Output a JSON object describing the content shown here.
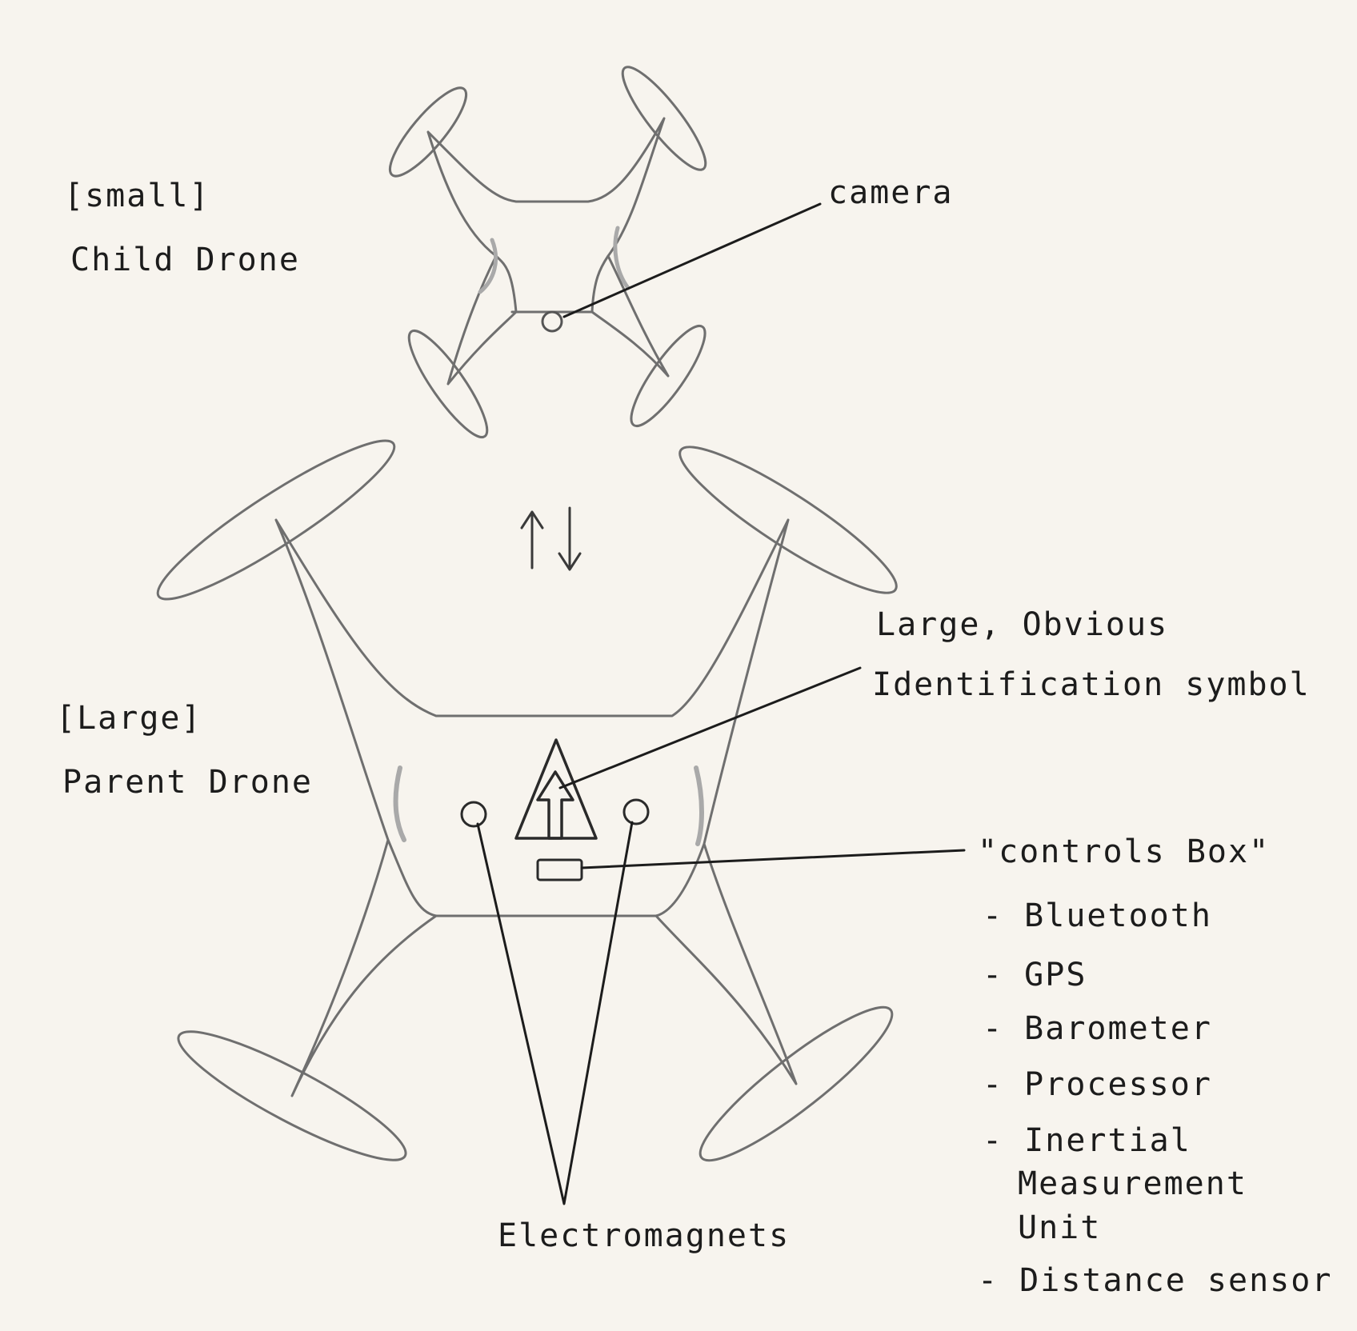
{
  "child": {
    "tag": "[small]",
    "name": "Child Drone"
  },
  "parent": {
    "tag": "[Large]",
    "name": "Parent Drone"
  },
  "camera_label": "camera",
  "symbol_label": {
    "line1": "Large, Obvious",
    "line2": "Identification symbol"
  },
  "controls": {
    "title": "\"controls Box\"",
    "features": [
      "- Bluetooth",
      "- GPS",
      "- Barometer",
      "- Processor",
      "- Inertial",
      "Measurement",
      "Unit",
      "- Distance sensor"
    ]
  },
  "magnets_label": "Electromagnets",
  "colors": {
    "paper": "#f7f4ee",
    "ink": "#1c1c1c",
    "pencil": "#6f6f6f"
  }
}
